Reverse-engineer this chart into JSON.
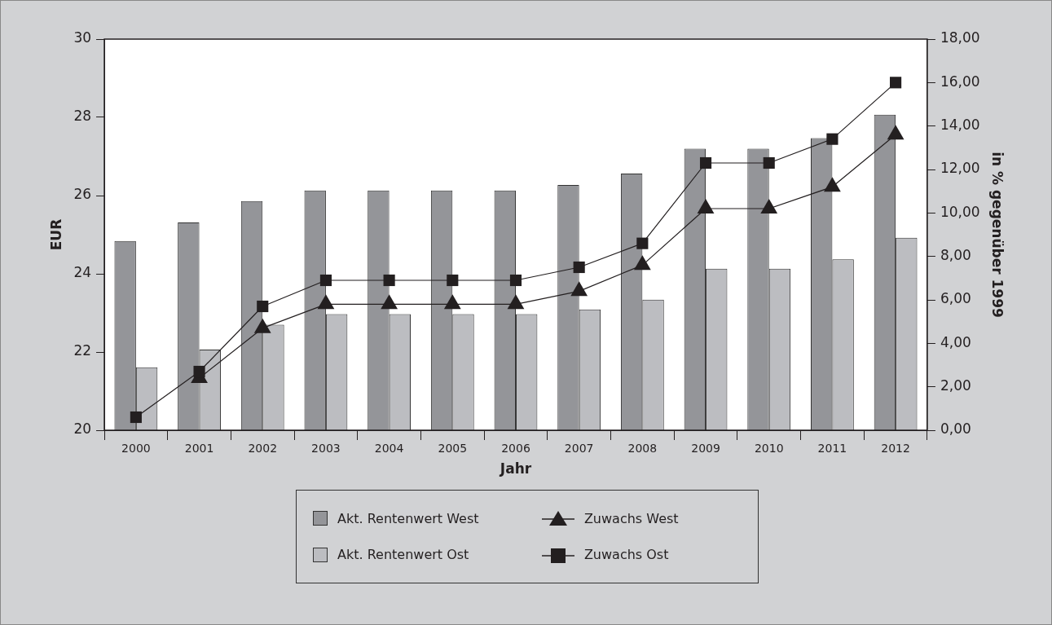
{
  "chart_data": {
    "type": "bar",
    "xlabel": "Jahr",
    "ylabel": "EUR",
    "y2label": "in % gegenüber 1999",
    "categories": [
      "2000",
      "2001",
      "2002",
      "2003",
      "2004",
      "2005",
      "2006",
      "2007",
      "2008",
      "2009",
      "2010",
      "2011",
      "2012"
    ],
    "series": [
      {
        "name": "Akt. Rentenwert West",
        "color": "#949599",
        "values": [
          24.84,
          25.31,
          25.86,
          26.13,
          26.13,
          26.13,
          26.13,
          26.27,
          26.56,
          27.2,
          27.2,
          27.47,
          28.07
        ]
      },
      {
        "name": "Akt. Rentenwert Ost",
        "color": "#bcbdc1",
        "values": [
          21.61,
          22.06,
          22.7,
          22.97,
          22.97,
          22.97,
          22.97,
          23.09,
          23.34,
          24.13,
          24.13,
          24.37,
          24.92
        ]
      },
      {
        "name": "Zuwachs West",
        "type": "line",
        "axis": "y2",
        "marker": "triangle",
        "color": "#231f20",
        "values": [
          null,
          2.4,
          4.7,
          5.8,
          5.8,
          5.8,
          5.8,
          6.4,
          7.6,
          10.2,
          10.2,
          11.2,
          13.6
        ]
      },
      {
        "name": "Zuwachs Ost",
        "type": "line",
        "axis": "y2",
        "marker": "square",
        "color": "#231f20",
        "values": [
          0.6,
          2.7,
          5.7,
          6.9,
          6.9,
          6.9,
          6.9,
          7.5,
          8.6,
          12.3,
          12.3,
          13.4,
          16.0
        ]
      }
    ],
    "ylim": [
      20,
      30
    ],
    "yticks": [
      20,
      22,
      24,
      26,
      28,
      30
    ],
    "y2lim": [
      0,
      18
    ],
    "y2ticks": [
      {
        "value": 0,
        "label": "0,00"
      },
      {
        "value": 2,
        "label": "2,00"
      },
      {
        "value": 4,
        "label": "4,00"
      },
      {
        "value": 6,
        "label": "6,00"
      },
      {
        "value": 8,
        "label": "8,00"
      },
      {
        "value": 10,
        "label": "10,00"
      },
      {
        "value": 12,
        "label": "12,00"
      },
      {
        "value": 14,
        "label": "14,00"
      },
      {
        "value": 16,
        "label": "16,00"
      },
      {
        "value": 18,
        "label": "18,00"
      }
    ],
    "legend": "bottom"
  }
}
